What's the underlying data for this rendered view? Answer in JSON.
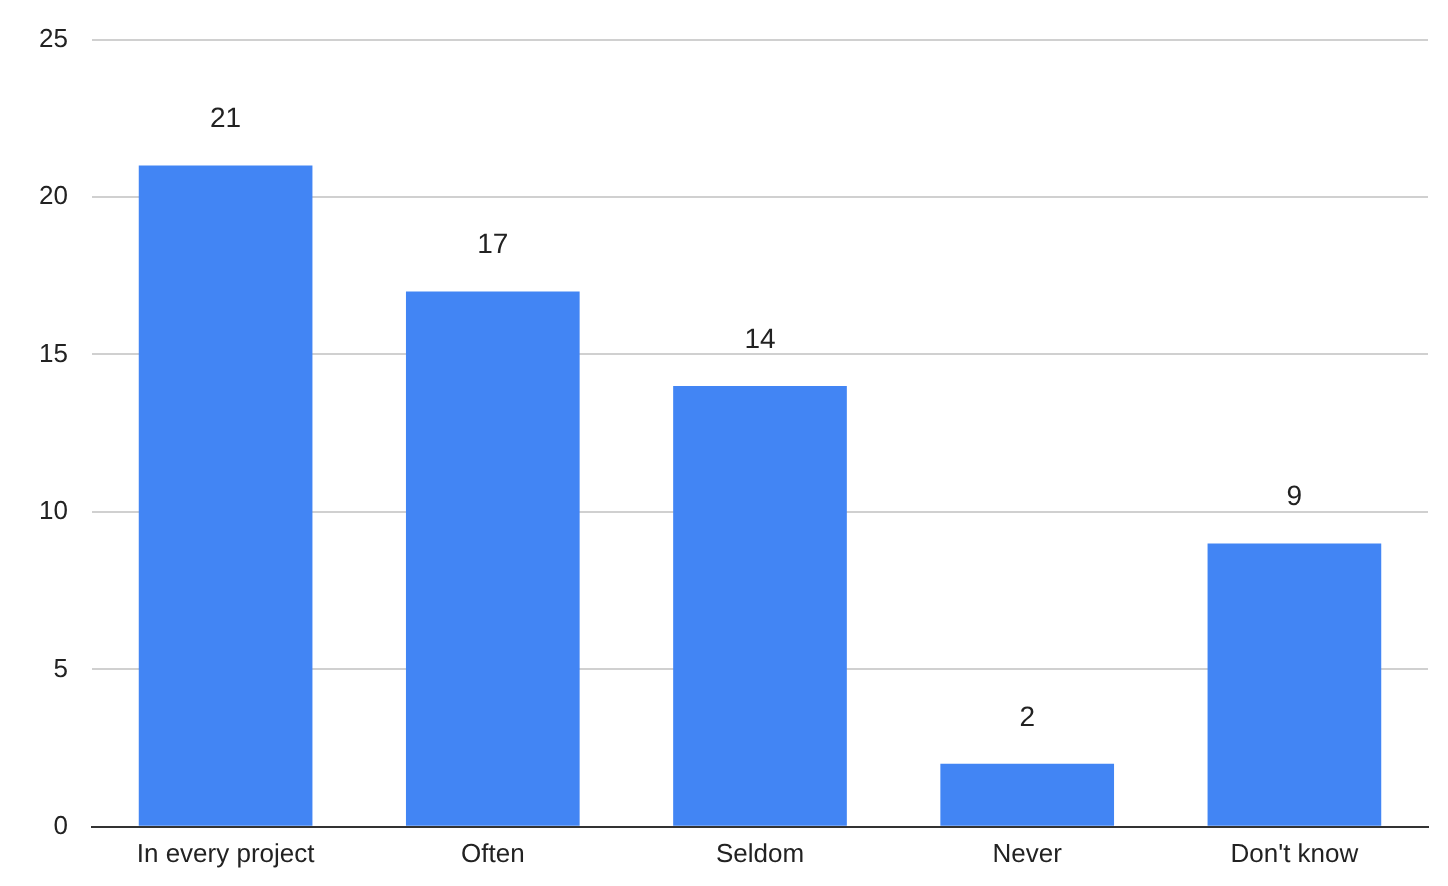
{
  "chart_data": {
    "type": "bar",
    "categories": [
      "In every project",
      "Often",
      "Seldom",
      "Never",
      "Don't know"
    ],
    "values": [
      21,
      17,
      14,
      2,
      9
    ],
    "color": "#4285f4",
    "ylim": [
      0,
      25
    ],
    "yticks": [
      0,
      5,
      10,
      15,
      20,
      25
    ],
    "grid": "y",
    "data_labels": true,
    "legend": false
  }
}
